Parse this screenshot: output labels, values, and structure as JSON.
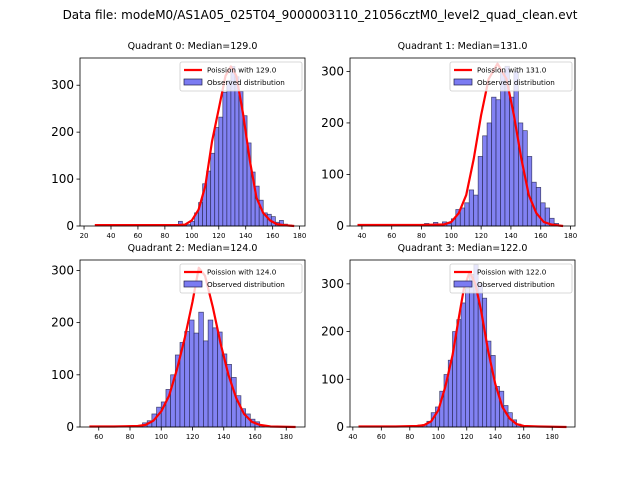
{
  "suptitle": "Data file: modeM0/AS1A05_025T04_9000003110_21056cztM0_level2_quad_clean.evt",
  "colors": {
    "bar_fill": "#7b7bf2",
    "bar_edge": "#22224a",
    "curve": "#ff0000"
  },
  "chart_data": [
    {
      "type": "bar",
      "title": "Quadrant 0: Median=129.0",
      "xlim": [
        17,
        184
      ],
      "ylim": [
        0,
        358
      ],
      "xticks": [
        20,
        40,
        60,
        80,
        100,
        120,
        140,
        160,
        180
      ],
      "yticks": [
        0,
        100,
        200,
        300
      ],
      "legend": {
        "position": "top-right",
        "entries": [
          "Poission with 129.0",
          "Observed distribution"
        ]
      },
      "bin_width": 3,
      "bins_start": [
        78,
        81,
        84,
        87,
        90,
        93,
        96,
        99,
        102,
        105,
        108,
        111,
        114,
        117,
        120,
        123,
        126,
        129,
        132,
        135,
        138,
        141,
        144,
        147,
        150,
        153,
        156,
        159,
        162,
        165,
        168,
        171
      ],
      "counts": [
        2,
        2,
        2,
        2,
        10,
        3,
        3,
        10,
        28,
        50,
        90,
        117,
        155,
        210,
        232,
        285,
        310,
        340,
        318,
        287,
        235,
        177,
        115,
        85,
        55,
        28,
        25,
        20,
        8,
        12,
        4,
        2
      ],
      "curve": {
        "label": "Poission with 129.0",
        "x": [
          28,
          40,
          60,
          80,
          90,
          95,
          100,
          105,
          110,
          115,
          120,
          125,
          129,
          133,
          138,
          143,
          148,
          153,
          158,
          163,
          168,
          176
        ],
        "y": [
          2,
          2,
          2,
          2,
          2,
          3,
          12,
          35,
          85,
          180,
          250,
          320,
          340,
          320,
          240,
          140,
          60,
          28,
          12,
          4,
          2,
          0
        ]
      }
    },
    {
      "type": "bar",
      "title": "Quadrant 1: Median=131.0",
      "xlim": [
        32,
        183
      ],
      "ylim": [
        0,
        326
      ],
      "xticks": [
        40,
        60,
        80,
        100,
        120,
        140,
        160,
        180
      ],
      "yticks": [
        0,
        100,
        200,
        300
      ],
      "legend": {
        "position": "top-right",
        "entries": [
          "Poission with 131.0",
          "Observed distribution"
        ]
      },
      "bin_width": 3,
      "bins_start": [
        79,
        82,
        85,
        88,
        91,
        94,
        97,
        100,
        103,
        106,
        109,
        112,
        115,
        118,
        121,
        124,
        127,
        130,
        133,
        136,
        139,
        142,
        145,
        148,
        151,
        154,
        157,
        160,
        163,
        166,
        169
      ],
      "counts": [
        2,
        5,
        3,
        7,
        3,
        8,
        5,
        14,
        32,
        35,
        45,
        70,
        60,
        135,
        175,
        200,
        250,
        245,
        300,
        310,
        250,
        300,
        200,
        185,
        135,
        85,
        75,
        45,
        35,
        15,
        5
      ],
      "curve": {
        "label": "Poission with 131.0",
        "x": [
          37,
          60,
          80,
          95,
          100,
          105,
          110,
          115,
          120,
          125,
          131,
          137,
          142,
          147,
          152,
          157,
          162,
          167,
          172,
          175
        ],
        "y": [
          2,
          2,
          2,
          3,
          8,
          25,
          60,
          130,
          215,
          285,
          315,
          285,
          215,
          130,
          60,
          25,
          8,
          3,
          1,
          0
        ]
      }
    },
    {
      "type": "bar",
      "title": "Quadrant 2: Median=124.0",
      "xlim": [
        48,
        192
      ],
      "ylim": [
        0,
        320
      ],
      "xticks": [
        60,
        80,
        100,
        120,
        140,
        160,
        180
      ],
      "yticks": [
        0,
        100,
        200,
        300
      ],
      "legend": {
        "position": "top-right",
        "entries": [
          "Poission with 124.0",
          "Observed distribution"
        ]
      },
      "bin_width": 3,
      "bins_start": [
        79,
        82,
        85,
        88,
        91,
        94,
        97,
        100,
        103,
        106,
        109,
        112,
        115,
        118,
        121,
        124,
        127,
        130,
        133,
        136,
        139,
        142,
        145,
        148,
        151,
        154,
        157,
        160,
        163
      ],
      "counts": [
        2,
        2,
        3,
        8,
        12,
        25,
        38,
        48,
        72,
        100,
        138,
        162,
        183,
        205,
        180,
        220,
        165,
        205,
        190,
        182,
        140,
        120,
        95,
        60,
        35,
        25,
        15,
        10,
        3
      ],
      "curve": {
        "label": "Poission with 124.0",
        "x": [
          54,
          70,
          85,
          90,
          95,
          100,
          105,
          110,
          115,
          120,
          124,
          128,
          133,
          138,
          143,
          148,
          153,
          158,
          163,
          170,
          186
        ],
        "y": [
          1,
          1,
          2,
          4,
          12,
          30,
          60,
          110,
          170,
          240,
          305,
          290,
          230,
          160,
          100,
          55,
          25,
          10,
          4,
          1,
          0
        ]
      }
    },
    {
      "type": "bar",
      "title": "Quadrant 3: Median=122.0",
      "xlim": [
        38,
        196
      ],
      "ylim": [
        0,
        350
      ],
      "xticks": [
        40,
        60,
        80,
        100,
        120,
        140,
        160,
        180
      ],
      "yticks": [
        0,
        100,
        200,
        300
      ],
      "legend": {
        "position": "top-right",
        "entries": [
          "Poission with 122.0",
          "Observed distribution"
        ]
      },
      "bin_width": 3,
      "bins_start": [
        83,
        86,
        89,
        92,
        95,
        98,
        101,
        104,
        107,
        110,
        113,
        116,
        119,
        122,
        125,
        128,
        131,
        134,
        137,
        140,
        143,
        146,
        149,
        152,
        155,
        158
      ],
      "counts": [
        2,
        4,
        5,
        12,
        30,
        42,
        75,
        110,
        140,
        200,
        225,
        260,
        290,
        320,
        340,
        300,
        270,
        180,
        150,
        85,
        75,
        45,
        30,
        15,
        6,
        3
      ],
      "curve": {
        "label": "Poission with 122.0",
        "x": [
          44,
          70,
          85,
          90,
          95,
          100,
          105,
          110,
          115,
          118,
          122,
          126,
          130,
          135,
          140,
          145,
          150,
          155,
          160,
          170,
          190
        ],
        "y": [
          1,
          1,
          2,
          4,
          12,
          35,
          85,
          150,
          240,
          290,
          325,
          300,
          245,
          160,
          90,
          42,
          18,
          6,
          2,
          1,
          0
        ]
      }
    }
  ]
}
